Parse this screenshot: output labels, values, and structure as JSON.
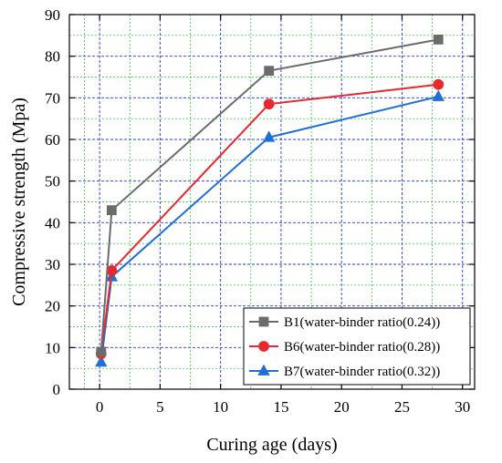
{
  "chart_data": {
    "type": "line",
    "xlabel": "Curing age (days)",
    "ylabel": "Compressive strength (Mpa)",
    "xlim": [
      -2.5,
      31
    ],
    "ylim": [
      0,
      90
    ],
    "x_ticks": [
      0,
      5,
      10,
      15,
      20,
      25,
      30
    ],
    "y_ticks": [
      0,
      10,
      20,
      30,
      40,
      50,
      60,
      70,
      80,
      90
    ],
    "grid": {
      "major": true,
      "minor": true,
      "major_color": "#1f3fd9",
      "minor_color": "#22c22a"
    },
    "legend_position": "bottom-right",
    "series": [
      {
        "name": "B1(water-binder ratio(0.24))",
        "color": "#6b6b6b",
        "marker": "square",
        "x": [
          0.125,
          1,
          14,
          28
        ],
        "y": [
          9,
          43,
          76.5,
          84
        ]
      },
      {
        "name": "B6(water-binder ratio(0.28))",
        "color": "#e8282e",
        "marker": "circle",
        "x": [
          0.125,
          1,
          14,
          28
        ],
        "y": [
          8.5,
          28.5,
          68.5,
          73.2
        ]
      },
      {
        "name": "B7(water-binder ratio(0.32))",
        "color": "#1f6fd8",
        "marker": "triangle",
        "x": [
          0.125,
          1,
          14,
          28
        ],
        "y": [
          6.5,
          27,
          60.5,
          70.3
        ]
      }
    ]
  }
}
